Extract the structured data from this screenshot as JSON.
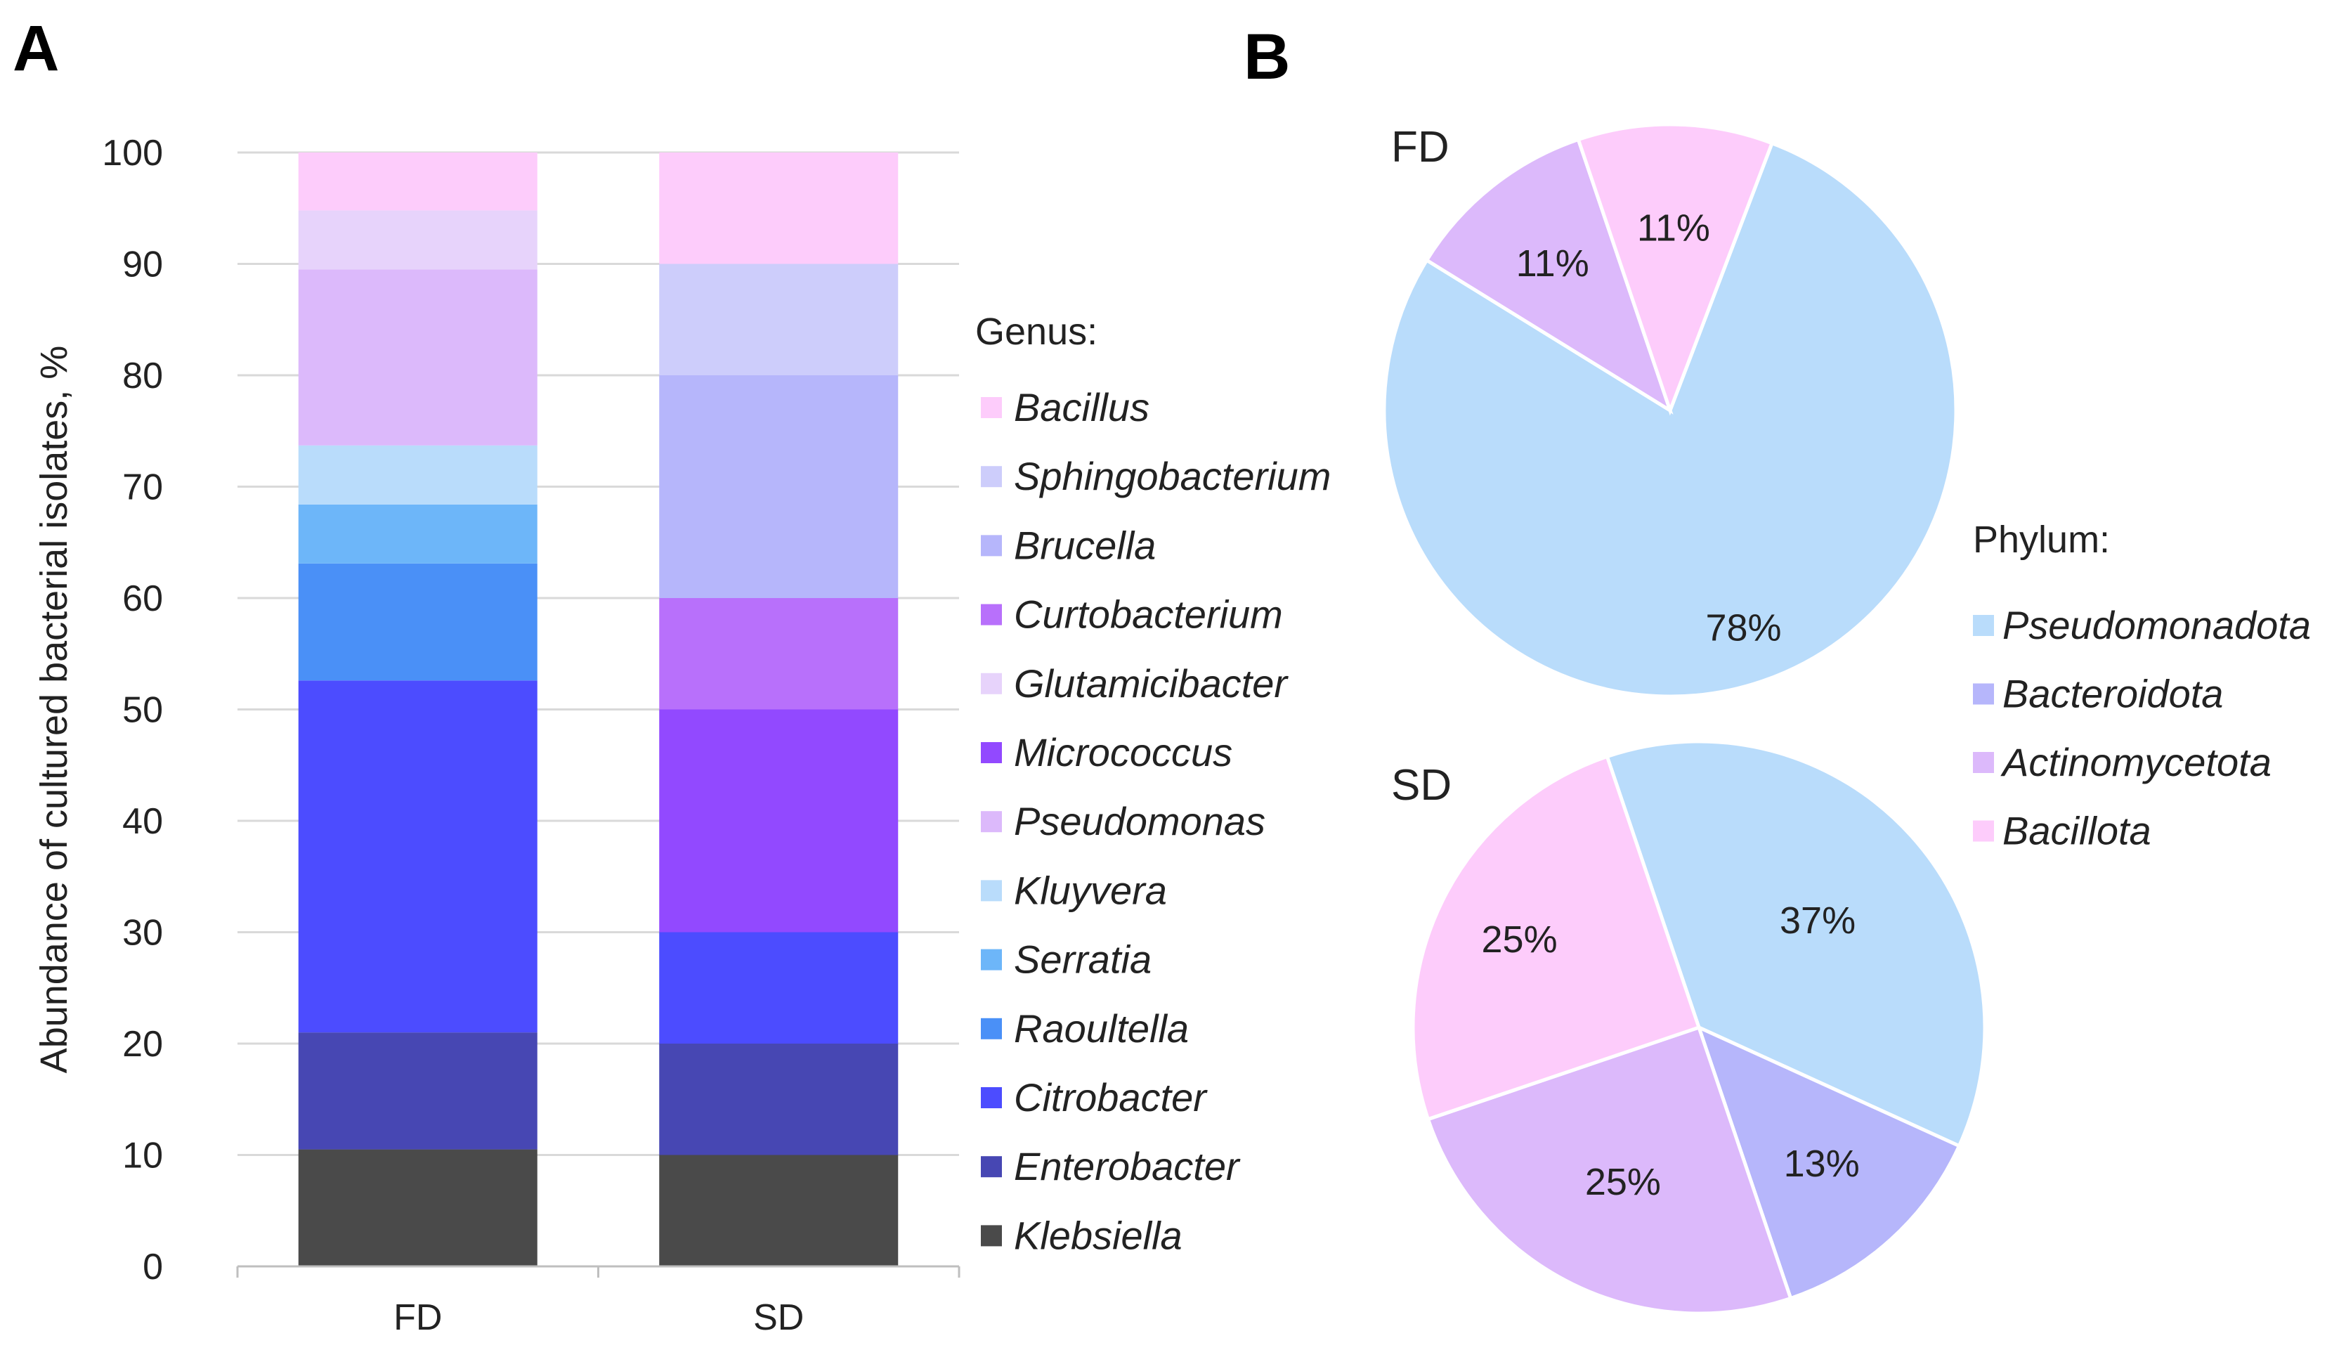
{
  "panels": {
    "a_label": "A",
    "b_label": "B"
  },
  "chart_data": [
    {
      "type": "bar",
      "stacked": true,
      "title": "",
      "categories": [
        "FD",
        "SD"
      ],
      "xlabel": "",
      "ylabel": "Abundance of cultured bacterial isolates, %",
      "ylim": [
        0,
        100
      ],
      "yticks": [
        0,
        10,
        20,
        30,
        40,
        50,
        60,
        70,
        80,
        90,
        100
      ],
      "grid": true,
      "legend_title": "Genus:",
      "legend_position": "right",
      "series": [
        {
          "name": "Klebsiella",
          "color": "#4a4a4a",
          "values": [
            10.5,
            10
          ]
        },
        {
          "name": "Enterobacter",
          "color": "#4747b3",
          "values": [
            10.5,
            10
          ]
        },
        {
          "name": "Citrobacter",
          "color": "#4c4cff",
          "values": [
            31.6,
            10
          ]
        },
        {
          "name": "Raoultella",
          "color": "#4a90f7",
          "values": [
            10.5,
            0
          ]
        },
        {
          "name": "Serratia",
          "color": "#6db6f9",
          "values": [
            5.3,
            0
          ]
        },
        {
          "name": "Kluyvera",
          "color": "#b9dcfb",
          "values": [
            5.3,
            0
          ]
        },
        {
          "name": "Pseudomonas",
          "color": "#dcb9fb",
          "values": [
            15.8,
            0
          ]
        },
        {
          "name": "Micrococcus",
          "color": "#9249ff",
          "values": [
            0,
            20
          ]
        },
        {
          "name": "Glutamicibacter",
          "color": "#e7d3fb",
          "values": [
            5.3,
            0
          ]
        },
        {
          "name": "Curtobacterium",
          "color": "#b870fb",
          "values": [
            0,
            10
          ]
        },
        {
          "name": "Brucella",
          "color": "#b6b6fb",
          "values": [
            0,
            20
          ]
        },
        {
          "name": "Sphingobacterium",
          "color": "#cdcdfb",
          "values": [
            0,
            10
          ]
        },
        {
          "name": "Bacillus",
          "color": "#fdccfb",
          "values": [
            5.2,
            10
          ]
        }
      ],
      "legend_order": [
        "Bacillus",
        "Sphingobacterium",
        "Brucella",
        "Curtobacterium",
        "Glutamicibacter",
        "Micrococcus",
        "Pseudomonas",
        "Kluyvera",
        "Serratia",
        "Raoultella",
        "Citrobacter",
        "Enterobacter",
        "Klebsiella"
      ]
    },
    {
      "type": "pie",
      "title": "FD",
      "slices": [
        {
          "name": "Pseudomonadota",
          "value": 78,
          "label": "78%",
          "color": "#b9dcfb"
        },
        {
          "name": "Actinomycetota",
          "value": 11,
          "label": "11%",
          "color": "#dcb9fb"
        },
        {
          "name": "Bacillota",
          "value": 11,
          "label": "11%",
          "color": "#fdccfb"
        }
      ]
    },
    {
      "type": "pie",
      "title": "SD",
      "slices": [
        {
          "name": "Pseudomonadota",
          "value": 37,
          "label": "37%",
          "color": "#b9dcfb"
        },
        {
          "name": "Bacteroidota",
          "value": 13,
          "label": "13%",
          "color": "#b6b6fb"
        },
        {
          "name": "Actinomycetota",
          "value": 25,
          "label": "25%",
          "color": "#dcb9fb"
        },
        {
          "name": "Bacillota",
          "value": 25,
          "label": "25%",
          "color": "#fdccfb"
        }
      ]
    }
  ],
  "phylum_legend": {
    "title": "Phylum:",
    "items": [
      {
        "name": "Pseudomonadota",
        "color": "#b9dcfb"
      },
      {
        "name": "Bacteroidota",
        "color": "#b6b6fb"
      },
      {
        "name": "Actinomycetota",
        "color": "#dcb9fb"
      },
      {
        "name": "Bacillota",
        "color": "#fdccfb"
      }
    ]
  }
}
